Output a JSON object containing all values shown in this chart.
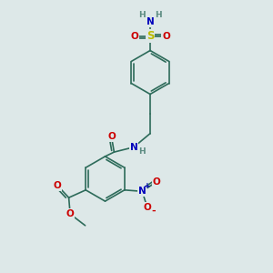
{
  "bg_color": "#dde8e8",
  "bond_color": "#2d6b5a",
  "bond_width": 1.2,
  "dbo": 0.08,
  "atom_colors": {
    "C": "#2d6b5a",
    "H": "#5a8a80",
    "N": "#0000bb",
    "O": "#cc0000",
    "S": "#bbbb00"
  },
  "fs": 7.5,
  "fsh": 6.5
}
